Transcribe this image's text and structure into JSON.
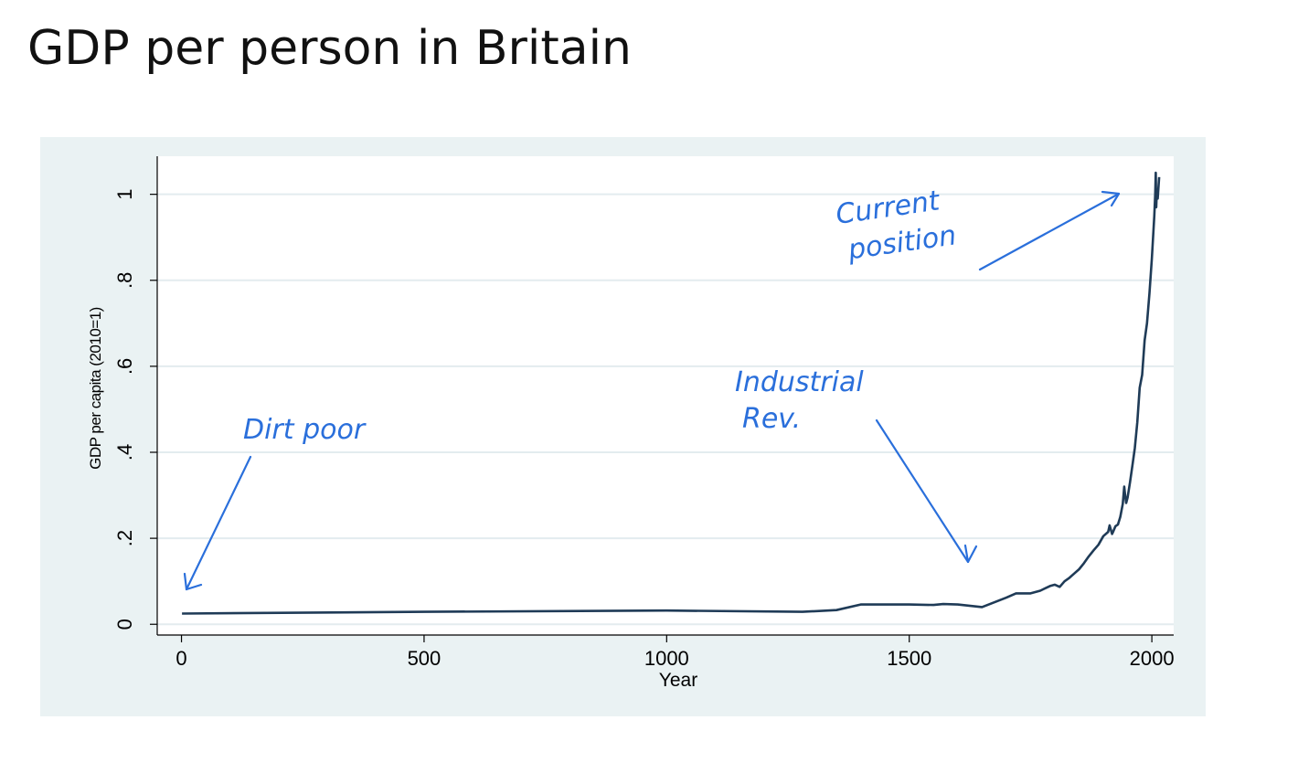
{
  "slide": {
    "title": "GDP per person in Britain"
  },
  "chart_data": {
    "type": "line",
    "xlabel": "Year",
    "ylabel": "GDP per capita (2010=1)",
    "xlim": [
      -50,
      2045
    ],
    "ylim": [
      -0.025,
      1.08
    ],
    "x_ticks": [
      0,
      500,
      1000,
      1500,
      2000
    ],
    "x_tick_labels": [
      "0",
      "500",
      "1000",
      "1500",
      "2000"
    ],
    "y_ticks": [
      0,
      0.2,
      0.4,
      0.6,
      0.8,
      1
    ],
    "y_tick_labels": [
      "0",
      ".2",
      ".4",
      ".6",
      ".8",
      "1"
    ],
    "grid": "horizontal",
    "legend": "none",
    "series": [
      {
        "color": "#1f3b57",
        "x": [
          1,
          500,
          1000,
          1280,
          1350,
          1400,
          1450,
          1500,
          1550,
          1570,
          1600,
          1650,
          1700,
          1720,
          1750,
          1770,
          1790,
          1800,
          1810,
          1820,
          1830,
          1840,
          1850,
          1860,
          1870,
          1880,
          1890,
          1900,
          1910,
          1913,
          1918,
          1920,
          1925,
          1930,
          1935,
          1940,
          1943,
          1945,
          1947,
          1950,
          1955,
          1960,
          1965,
          1970,
          1975,
          1980,
          1985,
          1990,
          1995,
          2000,
          2005,
          2007,
          2008,
          2009,
          2010,
          2012,
          2015
        ],
        "y": [
          0.025,
          0.029,
          0.032,
          0.029,
          0.033,
          0.046,
          0.046,
          0.046,
          0.045,
          0.047,
          0.046,
          0.04,
          0.062,
          0.072,
          0.072,
          0.078,
          0.089,
          0.092,
          0.087,
          0.1,
          0.108,
          0.118,
          0.128,
          0.142,
          0.158,
          0.172,
          0.185,
          0.205,
          0.215,
          0.23,
          0.21,
          0.215,
          0.228,
          0.232,
          0.25,
          0.28,
          0.32,
          0.3,
          0.282,
          0.295,
          0.33,
          0.37,
          0.41,
          0.47,
          0.55,
          0.58,
          0.66,
          0.7,
          0.77,
          0.85,
          0.95,
          1.0,
          1.05,
          0.97,
          1.0,
          0.99,
          1.04
        ]
      }
    ]
  },
  "annotations": [
    {
      "name": "dirt-poor",
      "lines": [
        "Dirt poor"
      ]
    },
    {
      "name": "industrial-rev",
      "lines": [
        "Industrial",
        "Rev."
      ]
    },
    {
      "name": "current-position",
      "lines": [
        "Current",
        "position"
      ]
    }
  ],
  "colors": {
    "panel_background": "#eaf2f3",
    "line": "#1f3b57",
    "annotation": "#2a6fdb"
  }
}
